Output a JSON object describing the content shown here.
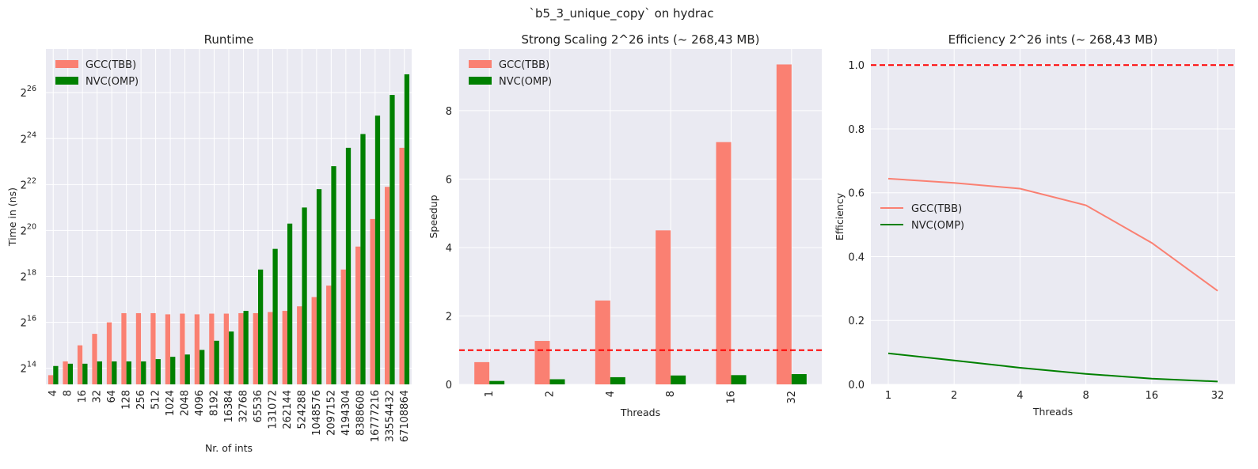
{
  "suptitle": "`b5_3_unique_copy` on hydrac",
  "colors": {
    "gcc": "#fa8072",
    "nvc": "#008000",
    "ref": "#ff0000",
    "bg": "#eaeaf2",
    "grid": "#ffffff"
  },
  "chart_data": [
    {
      "type": "bar",
      "title": "Runtime",
      "xlabel": "Nr. of ints",
      "ylabel": "Time in (ns)",
      "yscale": "log2",
      "ytick_exponents": [
        14,
        16,
        18,
        20,
        22,
        24,
        26
      ],
      "ylim_exponent": [
        13.3,
        27.9
      ],
      "legend": "upper-left",
      "categories": [
        "4",
        "8",
        "16",
        "32",
        "64",
        "128",
        "256",
        "512",
        "1024",
        "2048",
        "4096",
        "8192",
        "16384",
        "32768",
        "65536",
        "131072",
        "262144",
        "524288",
        "1048576",
        "2097152",
        "4194304",
        "8388608",
        "16777216",
        "33554432",
        "67108864"
      ],
      "series": [
        {
          "name": "GCC(TBB)",
          "log2_values": [
            13.7,
            14.3,
            15.0,
            15.5,
            16.0,
            16.4,
            16.4,
            16.4,
            16.35,
            16.38,
            16.35,
            16.38,
            16.38,
            16.4,
            16.4,
            16.45,
            16.5,
            16.7,
            17.1,
            17.6,
            18.3,
            19.3,
            20.5,
            21.9,
            23.6
          ]
        },
        {
          "name": "NVC(OMP)",
          "log2_values": [
            14.1,
            14.2,
            14.2,
            14.3,
            14.3,
            14.3,
            14.3,
            14.4,
            14.5,
            14.6,
            14.8,
            15.2,
            15.6,
            16.5,
            18.3,
            19.2,
            20.3,
            21.0,
            21.8,
            22.8,
            23.6,
            24.2,
            25.0,
            25.9,
            26.8
          ]
        }
      ]
    },
    {
      "type": "bar",
      "title": "Strong Scaling 2^26 ints (~ 268,43 MB)",
      "xlabel": "Threads",
      "ylabel": "Speedup",
      "ylim": [
        0,
        9.8
      ],
      "yticks": [
        0,
        2,
        4,
        6,
        8
      ],
      "reference_line": 1.0,
      "legend": "upper-left",
      "categories": [
        "1",
        "2",
        "4",
        "8",
        "16",
        "32"
      ],
      "series": [
        {
          "name": "GCC(TBB)",
          "values": [
            0.65,
            1.27,
            2.45,
            4.5,
            7.08,
            9.35
          ]
        },
        {
          "name": "NVC(OMP)",
          "values": [
            0.1,
            0.15,
            0.21,
            0.26,
            0.27,
            0.3
          ]
        }
      ]
    },
    {
      "type": "line",
      "title": "Efficiency 2^26 ints (~ 268,43 MB)",
      "xlabel": "Threads",
      "ylabel": "Efficiency",
      "xscale": "log2",
      "ylim": [
        0,
        1.05
      ],
      "yticks": [
        "0.0",
        "0.2",
        "0.4",
        "0.6",
        "0.8",
        "1.0"
      ],
      "reference_line": 1.0,
      "legend": "center-left",
      "x": [
        "1",
        "2",
        "4",
        "8",
        "16",
        "32"
      ],
      "series": [
        {
          "name": "GCC(TBB)",
          "values": [
            0.644,
            0.631,
            0.613,
            0.561,
            0.443,
            0.293
          ]
        },
        {
          "name": "NVC(OMP)",
          "values": [
            0.097,
            0.075,
            0.052,
            0.033,
            0.018,
            0.009
          ]
        }
      ]
    }
  ]
}
